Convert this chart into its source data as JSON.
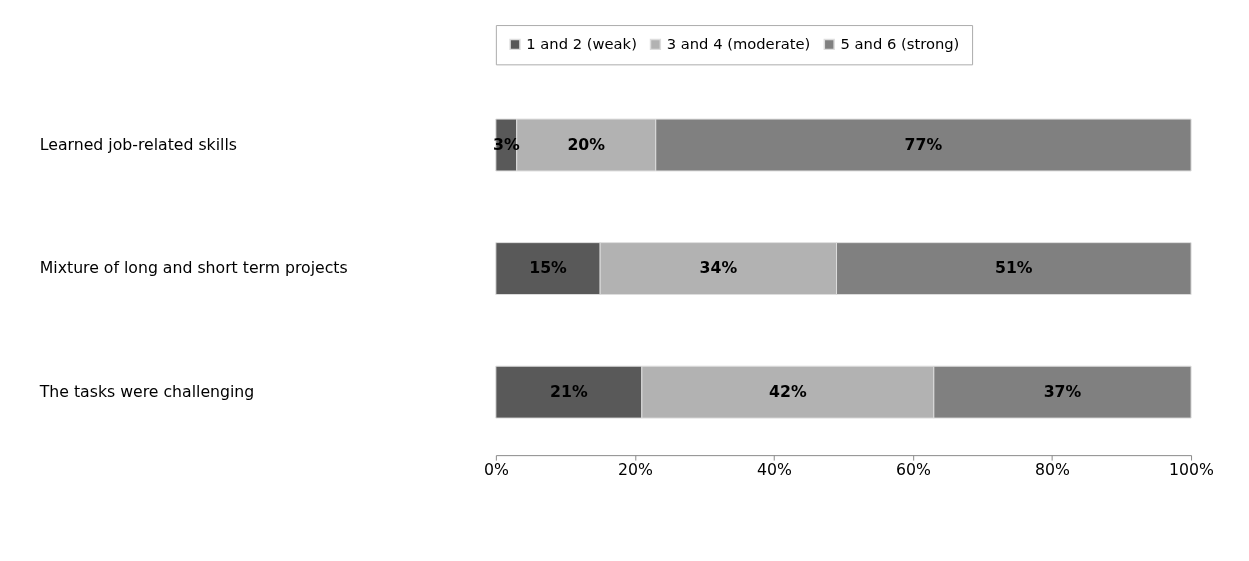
{
  "chart_data": {
    "type": "bar",
    "orientation": "horizontal",
    "stacked": true,
    "categories": [
      "Learned job-related skills",
      "Mixture of long and short term projects",
      "The tasks were challenging"
    ],
    "series": [
      {
        "name": "1 and 2 (weak)",
        "color": "#595959",
        "values": [
          3,
          15,
          21
        ],
        "value_labels": [
          "3%",
          "15%",
          "21%"
        ]
      },
      {
        "name": "3 and 4 (moderate)",
        "color": "#b2b2b2",
        "values": [
          20,
          34,
          42
        ],
        "value_labels": [
          "20%",
          "34%",
          "42%"
        ]
      },
      {
        "name": "5 and 6 (strong)",
        "color": "#808080",
        "values": [
          77,
          51,
          37
        ],
        "value_labels": [
          "77%",
          "51%",
          "37%"
        ]
      }
    ],
    "xlim": [
      0,
      100
    ],
    "xticks": [
      {
        "value": 0,
        "label": "0%"
      },
      {
        "value": 20,
        "label": "20%"
      },
      {
        "value": 40,
        "label": "40%"
      },
      {
        "value": 60,
        "label": "60%"
      },
      {
        "value": 80,
        "label": "80%"
      },
      {
        "value": 100,
        "label": "100%"
      }
    ],
    "legend": "top",
    "grid": false
  }
}
